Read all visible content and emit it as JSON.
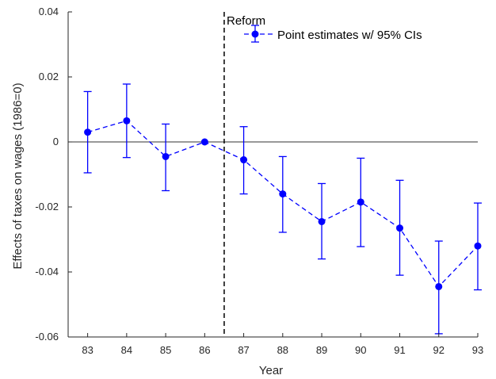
{
  "chart_data": {
    "type": "line",
    "title": "",
    "xlabel": "Year",
    "ylabel": "Effects of taxes on wages (1986=0)",
    "x": [
      83,
      84,
      85,
      86,
      87,
      88,
      89,
      90,
      91,
      92,
      93
    ],
    "xlim": [
      82.5,
      93
    ],
    "ylim": [
      -0.06,
      0.04
    ],
    "yticks": [
      -0.06,
      -0.04,
      -0.02,
      0,
      0.02,
      0.04
    ],
    "ytick_labels": [
      "-0.06",
      "-0.04",
      "-0.02",
      "0",
      "0.02",
      "0.04"
    ],
    "xtick_labels": [
      "83",
      "84",
      "85",
      "86",
      "87",
      "88",
      "89",
      "90",
      "91",
      "92",
      "93"
    ],
    "series": [
      {
        "name": "Point estimates w/ 95% CIs",
        "color": "#0000ff",
        "style": "dashed-with-markers",
        "values": [
          0.003,
          0.0065,
          -0.0045,
          0.0,
          -0.0055,
          -0.016,
          -0.0245,
          -0.0185,
          -0.0265,
          -0.0445,
          -0.032
        ],
        "ci_lower": [
          -0.0095,
          -0.0048,
          -0.015,
          0.0,
          -0.016,
          -0.0278,
          -0.036,
          -0.0322,
          -0.041,
          -0.059,
          -0.0455
        ],
        "ci_upper": [
          0.0155,
          0.0178,
          0.0055,
          0.0,
          0.0047,
          -0.0045,
          -0.0128,
          -0.005,
          -0.0118,
          -0.0305,
          -0.0188
        ]
      }
    ],
    "annotations": [
      {
        "type": "vline",
        "x": 86.5,
        "label": "Reform",
        "style": "dashed",
        "color": "#000000"
      },
      {
        "type": "hline",
        "y": 0,
        "color": "#333333"
      }
    ],
    "grid": false,
    "legend_position": "top-right"
  }
}
